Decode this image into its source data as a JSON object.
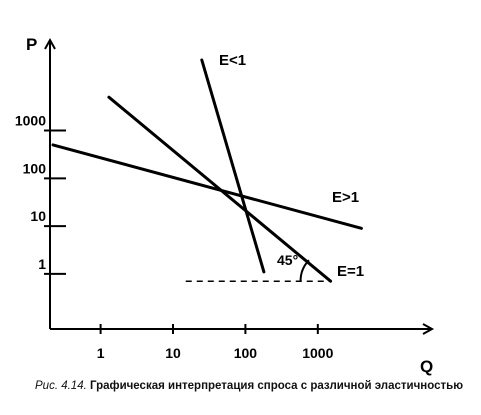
{
  "chart_data": {
    "type": "line",
    "xlabel": "Q",
    "ylabel": "P",
    "x_scale": "log",
    "y_scale": "log",
    "x_ticks": [
      "1",
      "10",
      "100",
      "1000"
    ],
    "y_ticks": [
      "1",
      "10",
      "100",
      "1000"
    ],
    "xlim": [
      0.2,
      20000
    ],
    "ylim": [
      0.07,
      30000
    ],
    "grid": false,
    "series": [
      {
        "name": "E<1",
        "points": [
          [
            25,
            30000
          ],
          [
            180,
            1.1
          ]
        ]
      },
      {
        "name": "E>1",
        "points": [
          [
            0.22,
            500
          ],
          [
            4000,
            9
          ]
        ]
      },
      {
        "name": "E=1",
        "points": [
          [
            1.3,
            5000
          ],
          [
            1500,
            0.7
          ]
        ]
      }
    ],
    "reference_line": {
      "y": 0.7,
      "x_from": 15,
      "x_to": 1500
    },
    "annotations": [
      {
        "text": "45°",
        "x": 300,
        "y": 1.8
      }
    ]
  },
  "caption": {
    "figure": "Рис. 4.14.",
    "text": "Графическая интерпретация спроса с различной эластичностью"
  }
}
